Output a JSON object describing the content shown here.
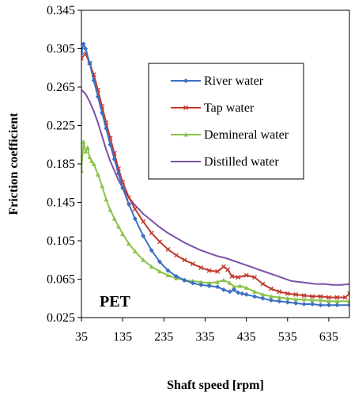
{
  "chart_data": {
    "type": "line",
    "xlabel": "Shaft speed [rpm]",
    "ylabel": "Friction coefficient",
    "xlim": [
      35,
      685
    ],
    "ylim": [
      0.025,
      0.345
    ],
    "xticks": [
      35,
      135,
      235,
      335,
      435,
      535,
      635
    ],
    "yticks": [
      0.025,
      0.065,
      0.105,
      0.145,
      0.185,
      0.225,
      0.265,
      0.305,
      0.345
    ],
    "grid": false,
    "legend_position": "upper-center",
    "annotation": "PET",
    "series": [
      {
        "name": "River water",
        "color": "#3A6FC4",
        "marker": "diamond",
        "x": [
          35,
          40,
          45,
          55,
          65,
          75,
          85,
          95,
          105,
          115,
          125,
          135,
          150,
          165,
          185,
          205,
          225,
          245,
          265,
          285,
          305,
          325,
          345,
          365,
          380,
          395,
          405,
          415,
          425,
          435,
          455,
          475,
          495,
          515,
          535,
          555,
          575,
          595,
          615,
          635,
          655,
          685
        ],
        "y": [
          0.3,
          0.31,
          0.305,
          0.29,
          0.272,
          0.255,
          0.238,
          0.222,
          0.205,
          0.19,
          0.175,
          0.16,
          0.143,
          0.128,
          0.11,
          0.095,
          0.083,
          0.074,
          0.068,
          0.064,
          0.061,
          0.059,
          0.058,
          0.057,
          0.054,
          0.052,
          0.054,
          0.051,
          0.05,
          0.049,
          0.047,
          0.045,
          0.043,
          0.042,
          0.041,
          0.04,
          0.039,
          0.039,
          0.038,
          0.038,
          0.038,
          0.038
        ]
      },
      {
        "name": "Tap water",
        "color": "#C0392B",
        "marker": "cross",
        "x": [
          35,
          45,
          55,
          65,
          75,
          85,
          95,
          105,
          115,
          125,
          135,
          150,
          165,
          185,
          205,
          225,
          245,
          265,
          285,
          305,
          325,
          345,
          365,
          380,
          390,
          400,
          415,
          435,
          455,
          475,
          495,
          515,
          535,
          555,
          575,
          595,
          615,
          635,
          655,
          675,
          685
        ],
        "y": [
          0.295,
          0.3,
          0.29,
          0.278,
          0.262,
          0.245,
          0.228,
          0.212,
          0.196,
          0.18,
          0.166,
          0.15,
          0.138,
          0.125,
          0.113,
          0.104,
          0.096,
          0.09,
          0.085,
          0.081,
          0.077,
          0.074,
          0.073,
          0.078,
          0.075,
          0.068,
          0.067,
          0.069,
          0.067,
          0.06,
          0.055,
          0.052,
          0.05,
          0.049,
          0.048,
          0.047,
          0.047,
          0.046,
          0.046,
          0.046,
          0.05
        ]
      },
      {
        "name": "Demineral water",
        "color": "#8BC34A",
        "marker": "triangle",
        "x": [
          35,
          40,
          45,
          50,
          55,
          60,
          65,
          75,
          85,
          95,
          105,
          115,
          125,
          135,
          150,
          165,
          185,
          205,
          225,
          245,
          265,
          285,
          305,
          325,
          345,
          365,
          380,
          395,
          405,
          420,
          435,
          455,
          475,
          495,
          515,
          535,
          555,
          575,
          595,
          615,
          635,
          655,
          685
        ],
        "y": [
          0.178,
          0.208,
          0.198,
          0.202,
          0.192,
          0.188,
          0.185,
          0.174,
          0.162,
          0.148,
          0.137,
          0.128,
          0.12,
          0.112,
          0.102,
          0.094,
          0.085,
          0.078,
          0.073,
          0.069,
          0.066,
          0.064,
          0.063,
          0.062,
          0.061,
          0.062,
          0.064,
          0.061,
          0.057,
          0.058,
          0.056,
          0.052,
          0.049,
          0.047,
          0.046,
          0.045,
          0.044,
          0.044,
          0.043,
          0.043,
          0.042,
          0.042,
          0.042
        ]
      },
      {
        "name": "Distilled water",
        "color": "#7D4FA8",
        "marker": "none",
        "x": [
          35,
          45,
          55,
          65,
          75,
          85,
          95,
          105,
          115,
          125,
          135,
          150,
          165,
          185,
          205,
          225,
          245,
          265,
          285,
          305,
          325,
          345,
          365,
          385,
          405,
          425,
          445,
          465,
          485,
          505,
          525,
          545,
          565,
          585,
          605,
          625,
          645,
          665,
          685
        ],
        "y": [
          0.262,
          0.258,
          0.25,
          0.24,
          0.228,
          0.214,
          0.2,
          0.188,
          0.178,
          0.168,
          0.16,
          0.15,
          0.142,
          0.133,
          0.126,
          0.119,
          0.113,
          0.108,
          0.103,
          0.099,
          0.095,
          0.092,
          0.089,
          0.087,
          0.084,
          0.081,
          0.078,
          0.075,
          0.072,
          0.069,
          0.066,
          0.063,
          0.062,
          0.061,
          0.06,
          0.06,
          0.059,
          0.059,
          0.06
        ]
      }
    ]
  }
}
